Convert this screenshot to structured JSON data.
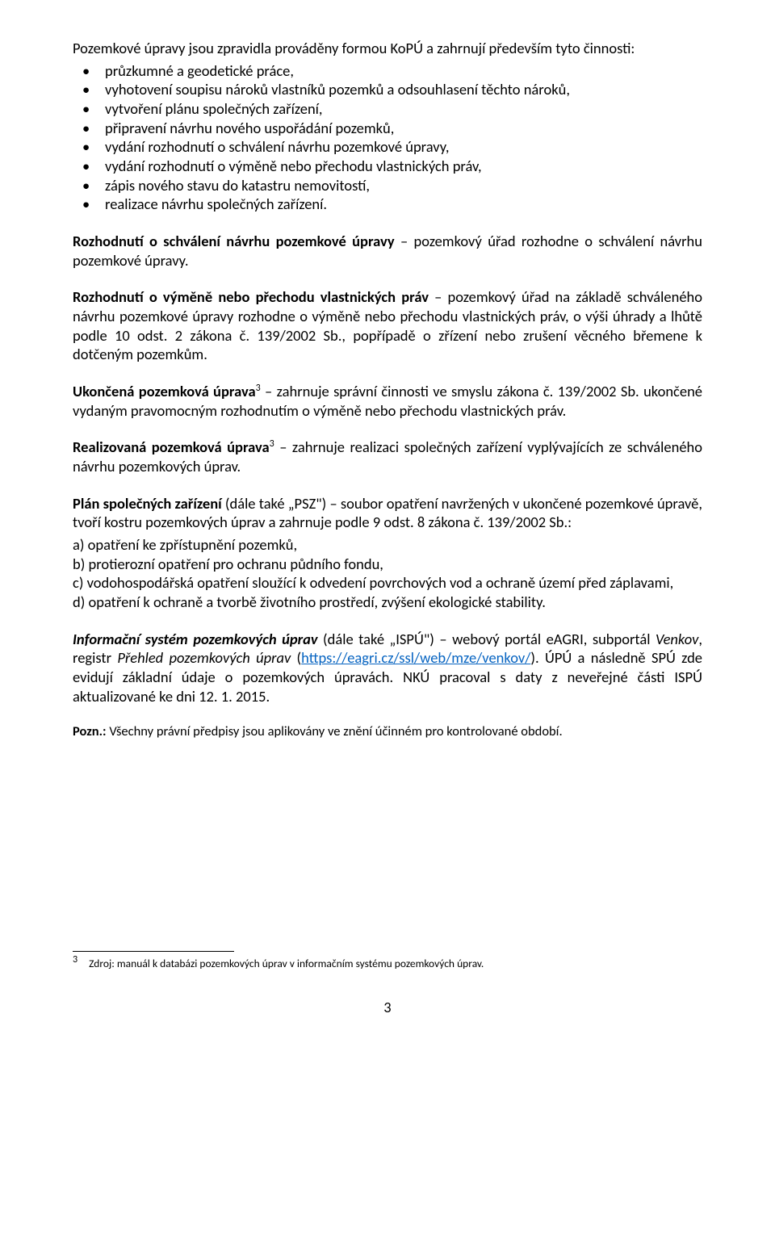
{
  "para_intro": "Pozemkové úpravy jsou zpravidla prováděny formou KoPÚ a zahrnují především tyto činnosti:",
  "bullets": [
    "průzkumné a geodetické práce,",
    "vyhotovení soupisu nároků vlastníků pozemků a odsouhlasení těchto nároků,",
    "vytvoření plánu společných zařízení,",
    "připravení návrhu nového uspořádání pozemků,",
    "vydání rozhodnutí o schválení návrhu pozemkové úpravy,",
    "vydání rozhodnutí o výměně nebo přechodu vlastnických práv,",
    "zápis nového stavu do katastru nemovitostí,",
    "realizace návrhu společných zařízení."
  ],
  "p1_bold": "Rozhodnutí o schválení návrhu pozemkové úpravy",
  "p1_rest": " – pozemkový úřad rozhodne o schválení návrhu pozemkové úpravy.",
  "p2_bold": "Rozhodnutí o výměně nebo přechodu vlastnických práv",
  "p2_rest": " – pozemkový úřad na základě schváleného návrhu pozemkové úpravy rozhodne o výměně nebo přechodu vlastnických práv, o výši úhrady a lhůtě podle 10 odst. 2 zákona č. 139/2002 Sb., popřípadě o zřízení nebo zrušení věcného břemene k dotčeným pozemkům.",
  "p3_bold": "Ukončená pozemková úprava",
  "p3_sup": "3",
  "p3_rest": " – zahrnuje správní činnosti ve smyslu zákona č. 139/2002 Sb. ukončené vydaným pravomocným rozhodnutím o výměně nebo přechodu vlastnických práv.",
  "p4_bold": "Realizovaná pozemková úprava",
  "p4_sup": "3",
  "p4_rest": " – zahrnuje realizaci společných zařízení vyplývajících ze schváleného návrhu pozemkových úprav.",
  "p5_bold": "Plán společných zařízení",
  "p5_rest": " (dále také „PSZ\") – soubor opatření navržených v ukončené pozemkové úpravě, tvoří kostru pozemkových úprav a zahrnuje podle 9 odst. 8 zákona č. 139/2002 Sb.:",
  "lettered": {
    "a": "a) opatření ke zpřístupnění pozemků,",
    "b": "b) protierozní opatření pro ochranu půdního fondu,",
    "c": "c) vodohospodářská opatření sloužící k odvedení povrchových vod a ochraně území před záplavami,",
    "d": "d) opatření k ochraně a tvorbě životního prostředí, zvýšení ekologické stability."
  },
  "p6_bolditalic": "Informační systém pozemkových úprav",
  "p6_part1": " (dále také „ISPÚ\") – webový portál eAGRI, subportál ",
  "p6_italic1": "Venkov",
  "p6_part2": ", registr ",
  "p6_italic2": "Přehled pozemkových úprav",
  "p6_part3": " (",
  "p6_link_text": "https://eagri.cz/ssl/web/mze/venkov/",
  "p6_link_href": "https://eagri.cz/ssl/web/mze/venkov/",
  "p6_part4": "). ÚPÚ a následně SPÚ zde evidují základní údaje o pozemkových úpravách. NKÚ pracoval s daty z neveřejné části ISPÚ aktualizované ke dni 12. 1. 2015.",
  "pozn_bold": "Pozn.:",
  "pozn_rest": " Všechny právní předpisy jsou aplikovány ve znění účinném pro kontrolované období.",
  "footnote_num": "3",
  "footnote_text": "Zdroj: manuál k databázi pozemkových úprav v informačním systému pozemkových úprav.",
  "page_number": "3"
}
